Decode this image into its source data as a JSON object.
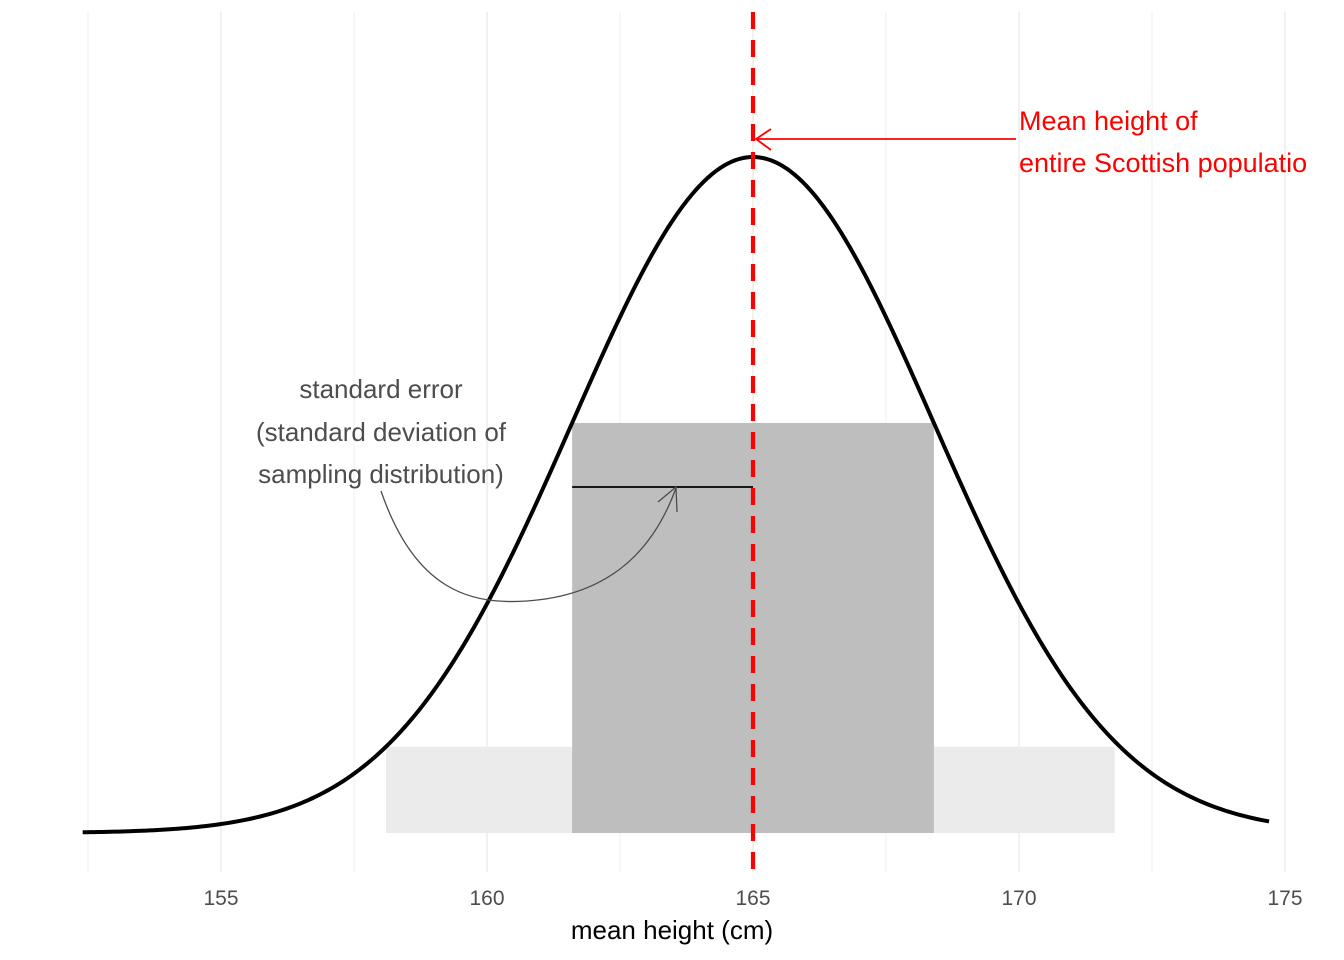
{
  "chart_data": {
    "type": "area",
    "xlabel": "mean height (cm)",
    "ylabel": "",
    "xlim": [
      152.5,
      175.5
    ],
    "x_ticks": [
      155,
      160,
      165,
      170,
      175
    ],
    "x_tick_labels": [
      "155",
      "160",
      "165",
      "170",
      "175"
    ],
    "y_axis_shown": false,
    "grid": "vertical",
    "distribution": {
      "mean": 165,
      "sd": 3.4,
      "x_range": [
        152.4,
        174.7
      ]
    },
    "shaded_regions": [
      {
        "from": 158.1,
        "to": 171.8,
        "shade": "light"
      },
      {
        "from": 161.6,
        "to": 168.4,
        "shade": "dark"
      }
    ],
    "reference_line": {
      "x": 165
    },
    "se_segment": {
      "from": 161.6,
      "to": 165
    },
    "annotations": {
      "standard_error": [
        "standard error",
        "(standard deviation of",
        "sampling distribution)"
      ],
      "population_mean": [
        "Mean height of",
        "entire Scottish populatio"
      ]
    }
  },
  "colors": {
    "curve": "#000000",
    "light_fill": "#ebebeb",
    "dark_fill": "#bebebe",
    "mean_line": "#ff0000",
    "grid": "#ebebeb",
    "annotation_gray": "#4d4d4d",
    "annotation_red": "#ff0000"
  }
}
